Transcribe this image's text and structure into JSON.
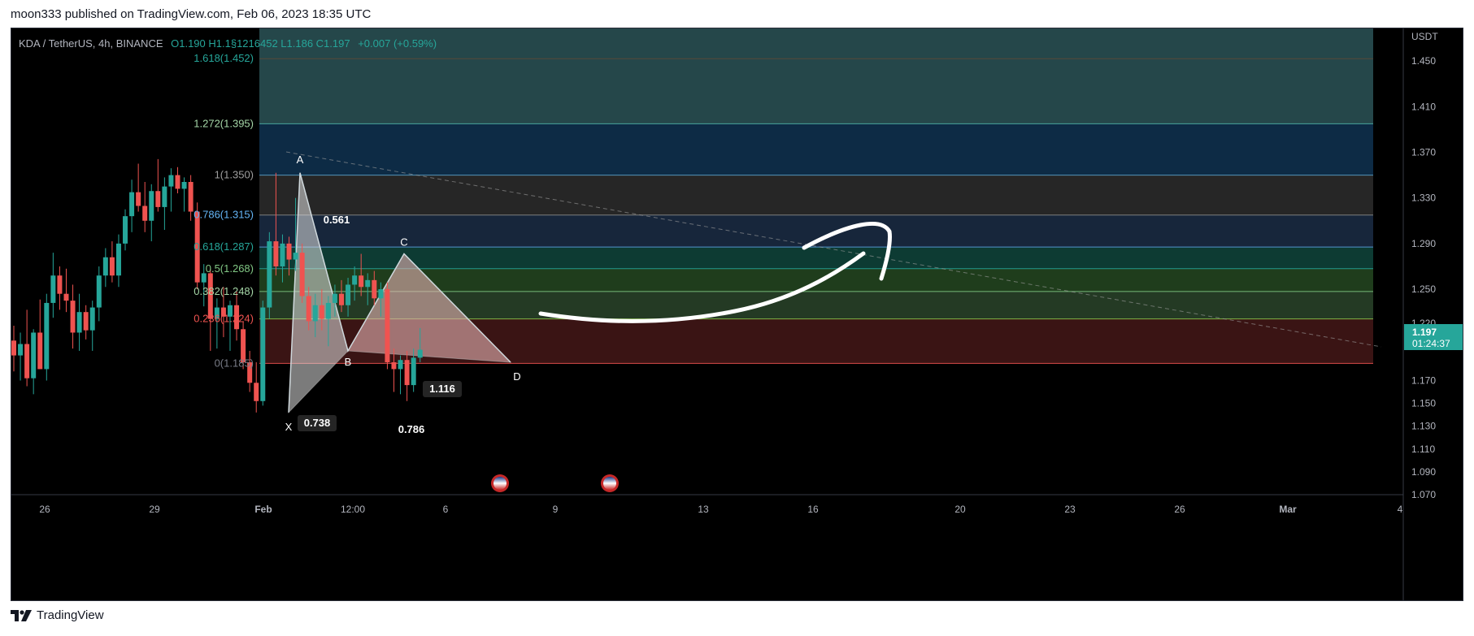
{
  "header": {
    "published": "moon333 published on TradingView.com, Feb 06, 2023 18:35 UTC"
  },
  "symbol": {
    "name": "KDA / TetherUS, 4h, BINANCE",
    "ohlc_text": "O1.190 H1.1§1216452 L1.186 C1.197",
    "change": "+0.007 (+0.59%)"
  },
  "footer": {
    "brand": "TradingView"
  },
  "colors": {
    "background": "#000000",
    "up": "#26a69a",
    "down": "#ef5350",
    "scale_text": "#b2b5be",
    "price_tag": "#26a69a"
  },
  "chart_data": {
    "type": "candlestick",
    "price_axis_unit": "USDT",
    "ylim": [
      1.07,
      1.46
    ],
    "y_ticks": [
      "1.450",
      "1.410",
      "1.370",
      "1.330",
      "1.290",
      "1.250",
      "1.220",
      "1.170",
      "1.150",
      "1.130",
      "1.110",
      "1.090",
      "1.070"
    ],
    "x_ticks": [
      "26",
      "29",
      "Feb",
      "12:00",
      "6",
      "9",
      "13",
      "16",
      "20",
      "23",
      "26",
      "Mar",
      "4"
    ],
    "last_price": "1.197",
    "countdown": "01:24:37",
    "fib_levels": [
      {
        "label": "1.618(1.452)",
        "price": 1.452
      },
      {
        "label": "1.272(1.395)",
        "price": 1.395,
        "color": "#a5d6a7"
      },
      {
        "label": "1(1.350)",
        "price": 1.35,
        "color": "#9e9e9e"
      },
      {
        "label": "0.786(1.315)",
        "price": 1.315,
        "color": "#64b5f6"
      },
      {
        "label": "0.618(1.287)",
        "price": 1.287,
        "color": "#26a69a"
      },
      {
        "label": "0.5(1.268)",
        "price": 1.268,
        "color": "#81c784"
      },
      {
        "label": "0.382(1.248)",
        "price": 1.248,
        "color": "#a5d6a7"
      },
      {
        "label": "0.236(1.224)",
        "price": 1.224,
        "color": "#ef5350"
      },
      {
        "label": "0(1.185)",
        "price": 1.185,
        "color": "#787b86"
      }
    ],
    "pattern_points": [
      {
        "label": "X",
        "price": 1.142
      },
      {
        "label": "A",
        "price": 1.352
      },
      {
        "label": "B",
        "price": 1.196
      },
      {
        "label": "C",
        "price": 1.281
      },
      {
        "label": "D",
        "price": 1.186
      }
    ],
    "pattern_ratios": [
      "0.561",
      "0.738",
      "0.786",
      "1.116"
    ],
    "candles": [
      {
        "o": 1.205,
        "h": 1.218,
        "l": 1.178,
        "c": 1.192
      },
      {
        "o": 1.192,
        "h": 1.212,
        "l": 1.17,
        "c": 1.202
      },
      {
        "o": 1.202,
        "h": 1.232,
        "l": 1.165,
        "c": 1.172
      },
      {
        "o": 1.172,
        "h": 1.215,
        "l": 1.158,
        "c": 1.212
      },
      {
        "o": 1.212,
        "h": 1.241,
        "l": 1.18,
        "c": 1.18
      },
      {
        "o": 1.18,
        "h": 1.246,
        "l": 1.17,
        "c": 1.238
      },
      {
        "o": 1.238,
        "h": 1.282,
        "l": 1.225,
        "c": 1.262
      },
      {
        "o": 1.262,
        "h": 1.27,
        "l": 1.232,
        "c": 1.246
      },
      {
        "o": 1.246,
        "h": 1.268,
        "l": 1.23,
        "c": 1.24
      },
      {
        "o": 1.24,
        "h": 1.254,
        "l": 1.198,
        "c": 1.212
      },
      {
        "o": 1.212,
        "h": 1.246,
        "l": 1.196,
        "c": 1.23
      },
      {
        "o": 1.23,
        "h": 1.236,
        "l": 1.206,
        "c": 1.214
      },
      {
        "o": 1.214,
        "h": 1.24,
        "l": 1.196,
        "c": 1.234
      },
      {
        "o": 1.234,
        "h": 1.27,
        "l": 1.222,
        "c": 1.262
      },
      {
        "o": 1.262,
        "h": 1.286,
        "l": 1.252,
        "c": 1.278
      },
      {
        "o": 1.278,
        "h": 1.292,
        "l": 1.256,
        "c": 1.262
      },
      {
        "o": 1.262,
        "h": 1.298,
        "l": 1.252,
        "c": 1.29
      },
      {
        "o": 1.29,
        "h": 1.32,
        "l": 1.284,
        "c": 1.314
      },
      {
        "o": 1.314,
        "h": 1.346,
        "l": 1.3,
        "c": 1.335
      },
      {
        "o": 1.335,
        "h": 1.36,
        "l": 1.318,
        "c": 1.323
      },
      {
        "o": 1.323,
        "h": 1.344,
        "l": 1.3,
        "c": 1.31
      },
      {
        "o": 1.31,
        "h": 1.342,
        "l": 1.292,
        "c": 1.336
      },
      {
        "o": 1.336,
        "h": 1.364,
        "l": 1.318,
        "c": 1.322
      },
      {
        "o": 1.322,
        "h": 1.348,
        "l": 1.302,
        "c": 1.34
      },
      {
        "o": 1.34,
        "h": 1.356,
        "l": 1.318,
        "c": 1.35
      },
      {
        "o": 1.35,
        "h": 1.357,
        "l": 1.334,
        "c": 1.338
      },
      {
        "o": 1.338,
        "h": 1.348,
        "l": 1.318,
        "c": 1.344
      },
      {
        "o": 1.344,
        "h": 1.35,
        "l": 1.31,
        "c": 1.318
      },
      {
        "o": 1.318,
        "h": 1.326,
        "l": 1.25,
        "c": 1.256
      },
      {
        "o": 1.256,
        "h": 1.272,
        "l": 1.235,
        "c": 1.264
      },
      {
        "o": 1.264,
        "h": 1.268,
        "l": 1.196,
        "c": 1.224
      },
      {
        "o": 1.224,
        "h": 1.242,
        "l": 1.198,
        "c": 1.234
      },
      {
        "o": 1.234,
        "h": 1.252,
        "l": 1.208,
        "c": 1.226
      },
      {
        "o": 1.226,
        "h": 1.24,
        "l": 1.196,
        "c": 1.236
      },
      {
        "o": 1.236,
        "h": 1.248,
        "l": 1.205,
        "c": 1.215
      },
      {
        "o": 1.215,
        "h": 1.222,
        "l": 1.18,
        "c": 1.186
      },
      {
        "o": 1.186,
        "h": 1.196,
        "l": 1.16,
        "c": 1.168
      },
      {
        "o": 1.168,
        "h": 1.186,
        "l": 1.142,
        "c": 1.152
      },
      {
        "o": 1.152,
        "h": 1.24,
        "l": 1.148,
        "c": 1.234
      },
      {
        "o": 1.234,
        "h": 1.3,
        "l": 1.224,
        "c": 1.292
      },
      {
        "o": 1.292,
        "h": 1.352,
        "l": 1.262,
        "c": 1.27
      },
      {
        "o": 1.27,
        "h": 1.298,
        "l": 1.256,
        "c": 1.29
      },
      {
        "o": 1.29,
        "h": 1.296,
        "l": 1.262,
        "c": 1.276
      },
      {
        "o": 1.276,
        "h": 1.33,
        "l": 1.266,
        "c": 1.282
      },
      {
        "o": 1.282,
        "h": 1.29,
        "l": 1.238,
        "c": 1.244
      },
      {
        "o": 1.244,
        "h": 1.252,
        "l": 1.214,
        "c": 1.222
      },
      {
        "o": 1.222,
        "h": 1.246,
        "l": 1.208,
        "c": 1.236
      },
      {
        "o": 1.236,
        "h": 1.25,
        "l": 1.214,
        "c": 1.224
      },
      {
        "o": 1.224,
        "h": 1.244,
        "l": 1.2,
        "c": 1.238
      },
      {
        "o": 1.238,
        "h": 1.254,
        "l": 1.226,
        "c": 1.246
      },
      {
        "o": 1.246,
        "h": 1.258,
        "l": 1.23,
        "c": 1.236
      },
      {
        "o": 1.236,
        "h": 1.26,
        "l": 1.226,
        "c": 1.254
      },
      {
        "o": 1.254,
        "h": 1.27,
        "l": 1.24,
        "c": 1.262
      },
      {
        "o": 1.262,
        "h": 1.281,
        "l": 1.244,
        "c": 1.252
      },
      {
        "o": 1.252,
        "h": 1.264,
        "l": 1.236,
        "c": 1.258
      },
      {
        "o": 1.258,
        "h": 1.266,
        "l": 1.236,
        "c": 1.242
      },
      {
        "o": 1.242,
        "h": 1.256,
        "l": 1.226,
        "c": 1.25
      },
      {
        "o": 1.25,
        "h": 1.256,
        "l": 1.18,
        "c": 1.186
      },
      {
        "o": 1.186,
        "h": 1.198,
        "l": 1.16,
        "c": 1.18
      },
      {
        "o": 1.18,
        "h": 1.192,
        "l": 1.158,
        "c": 1.188
      },
      {
        "o": 1.188,
        "h": 1.196,
        "l": 1.152,
        "c": 1.166
      },
      {
        "o": 1.166,
        "h": 1.198,
        "l": 1.16,
        "c": 1.19
      },
      {
        "o": 1.19,
        "h": 1.216,
        "l": 1.186,
        "c": 1.197
      }
    ]
  }
}
